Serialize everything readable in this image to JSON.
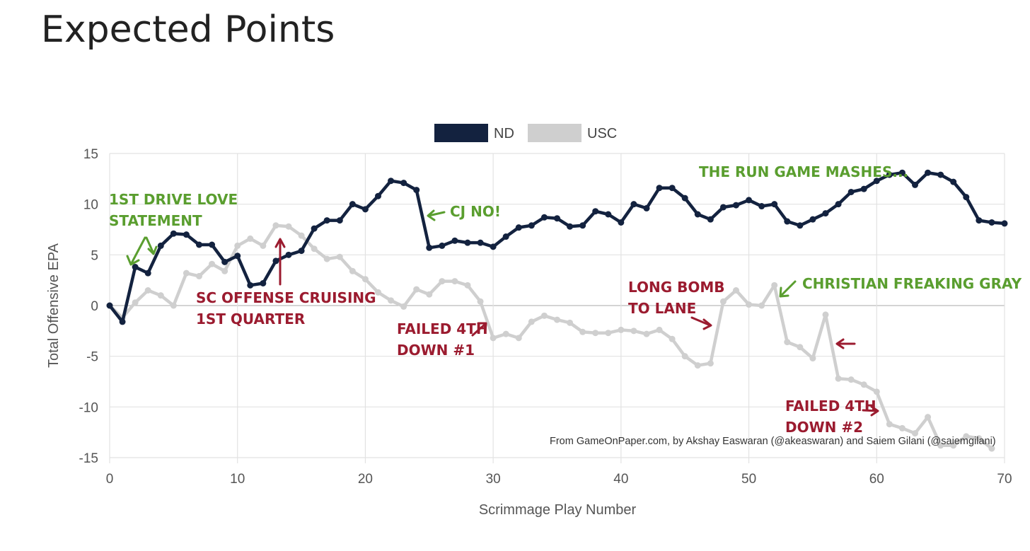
{
  "page": {
    "title": "Expected Points"
  },
  "colors": {
    "nd": "#13223f",
    "usc": "#cfcfcf",
    "grid": "#e2e2e2",
    "zero": "#bbbbbb",
    "green": "#5a9e2f",
    "red": "#9b1b2f"
  },
  "chart_data": {
    "type": "line",
    "title": "",
    "xlabel": "Scrimmage Play Number",
    "ylabel": "Total Offensive EPA",
    "xlim": [
      0,
      70
    ],
    "ylim": [
      -15,
      15
    ],
    "xticks": [
      0,
      10,
      20,
      30,
      40,
      50,
      60,
      70
    ],
    "yticks": [
      15,
      10,
      5,
      0,
      -5,
      -10,
      -15
    ],
    "grid": true,
    "legend": {
      "position": "top-center",
      "entries": [
        "ND",
        "USC"
      ]
    },
    "series": [
      {
        "name": "ND",
        "x_start": 0,
        "values": [
          0,
          -1.6,
          3.8,
          3.2,
          5.9,
          7.1,
          7.0,
          6.0,
          6.0,
          4.3,
          4.9,
          2.0,
          2.2,
          4.4,
          5.0,
          5.4,
          7.6,
          8.4,
          8.4,
          10.0,
          9.5,
          10.8,
          12.3,
          12.1,
          11.4,
          5.7,
          5.9,
          6.4,
          6.2,
          6.2,
          5.8,
          6.8,
          7.7,
          7.9,
          8.7,
          8.6,
          7.8,
          7.9,
          9.3,
          9.0,
          8.2,
          10.0,
          9.6,
          11.6,
          11.6,
          10.6,
          9.0,
          8.5,
          9.7,
          9.9,
          10.4,
          9.8,
          10.0,
          8.3,
          7.9,
          8.5,
          9.1,
          10.0,
          11.2,
          11.5,
          12.3,
          12.9,
          13.1,
          11.9,
          13.1,
          12.9,
          12.2,
          10.7,
          8.4,
          8.2,
          8.1
        ]
      },
      {
        "name": "USC",
        "x_start": 0,
        "values": [
          0,
          -1.2,
          0.3,
          1.5,
          1.0,
          0.0,
          3.2,
          2.9,
          4.1,
          3.4,
          5.9,
          6.6,
          5.9,
          7.9,
          7.8,
          6.9,
          5.6,
          4.6,
          4.8,
          3.4,
          2.6,
          1.3,
          0.5,
          -0.1,
          1.6,
          1.1,
          2.4,
          2.4,
          2.0,
          0.4,
          -3.2,
          -2.8,
          -3.2,
          -1.6,
          -1.0,
          -1.4,
          -1.7,
          -2.6,
          -2.7,
          -2.7,
          -2.4,
          -2.5,
          -2.8,
          -2.4,
          -3.3,
          -5.0,
          -5.9,
          -5.7,
          0.4,
          1.5,
          0.1,
          0.0,
          2.0,
          -3.6,
          -4.1,
          -5.2,
          -0.9,
          -7.2,
          -7.3,
          -7.8,
          -8.5,
          -11.7,
          -12.1,
          -12.6,
          -11.0,
          -13.8,
          -13.8,
          -12.9,
          -13.1,
          -14.1
        ]
      }
    ],
    "annotations": [
      {
        "id": "drive",
        "lines": [
          "1ST DRIVE LOVE",
          "STATEMENT"
        ],
        "color": "green"
      },
      {
        "id": "cruising",
        "lines": [
          "SC OFFENSE CRUISING",
          "1ST QUARTER"
        ],
        "color": "red"
      },
      {
        "id": "cjno",
        "lines": [
          "CJ NO!"
        ],
        "color": "green"
      },
      {
        "id": "failed1",
        "lines": [
          "FAILED 4TH",
          "DOWN #1"
        ],
        "color": "red"
      },
      {
        "id": "runmash",
        "lines": [
          "THE RUN GAME MASHES..."
        ],
        "color": "green"
      },
      {
        "id": "longbomb",
        "lines": [
          "LONG BOMB",
          "TO LANE"
        ],
        "color": "red"
      },
      {
        "id": "gray",
        "lines": [
          "CHRISTIAN FREAKING GRAY"
        ],
        "color": "green"
      },
      {
        "id": "failed2",
        "lines": [
          "FAILED 4TH",
          "DOWN #2"
        ],
        "color": "red"
      }
    ],
    "credit": "From GameOnPaper.com, by Akshay Easwaran (@akeaswaran) and Saiem Gilani (@saiemgilani)"
  }
}
